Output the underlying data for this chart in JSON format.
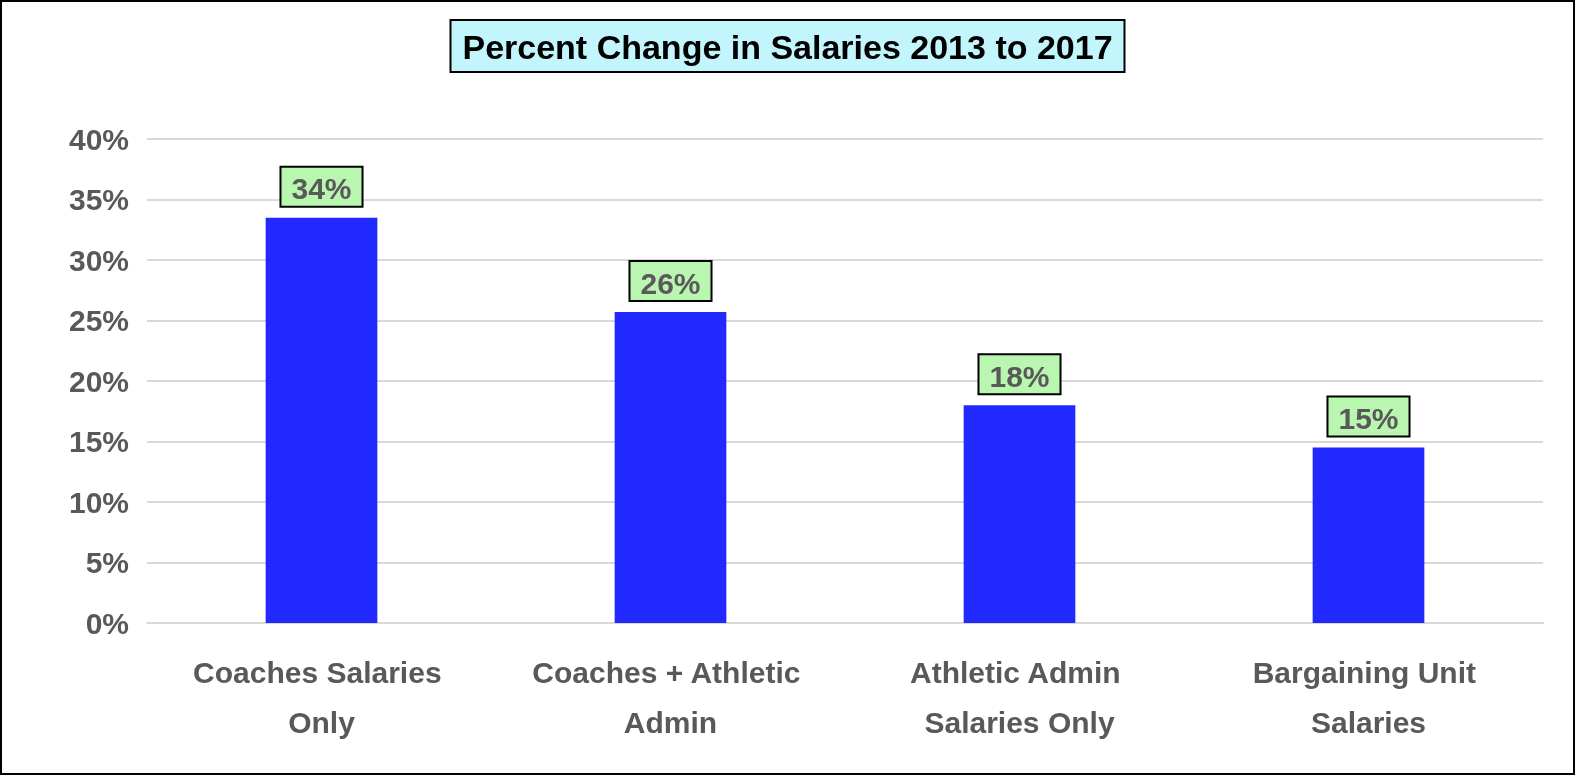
{
  "chart_data": {
    "type": "bar",
    "title": "Percent Change in Salaries 2013 to 2017",
    "categories": [
      "Coaches Salaries Only",
      "Coaches + Athletic Admin",
      "Athletic Admin Salaries Only",
      "Bargaining Unit Salaries"
    ],
    "values": [
      33.5,
      25.7,
      18.0,
      14.5
    ],
    "color": "#2229ff",
    "value_labels": [
      "34%",
      "26%",
      "18%",
      "15%"
    ],
    "ylim": [
      0,
      40
    ],
    "yticks": [
      {
        "value": 0,
        "label": "0%"
      },
      {
        "value": 5,
        "label": "5%"
      },
      {
        "value": 10,
        "label": "10%"
      },
      {
        "value": 15,
        "label": "15%"
      },
      {
        "value": 20,
        "label": "20%"
      },
      {
        "value": 25,
        "label": "25%"
      },
      {
        "value": 30,
        "label": "30%"
      },
      {
        "value": 35,
        "label": "35%"
      },
      {
        "value": 40,
        "label": "40%"
      }
    ],
    "grid": "y"
  }
}
